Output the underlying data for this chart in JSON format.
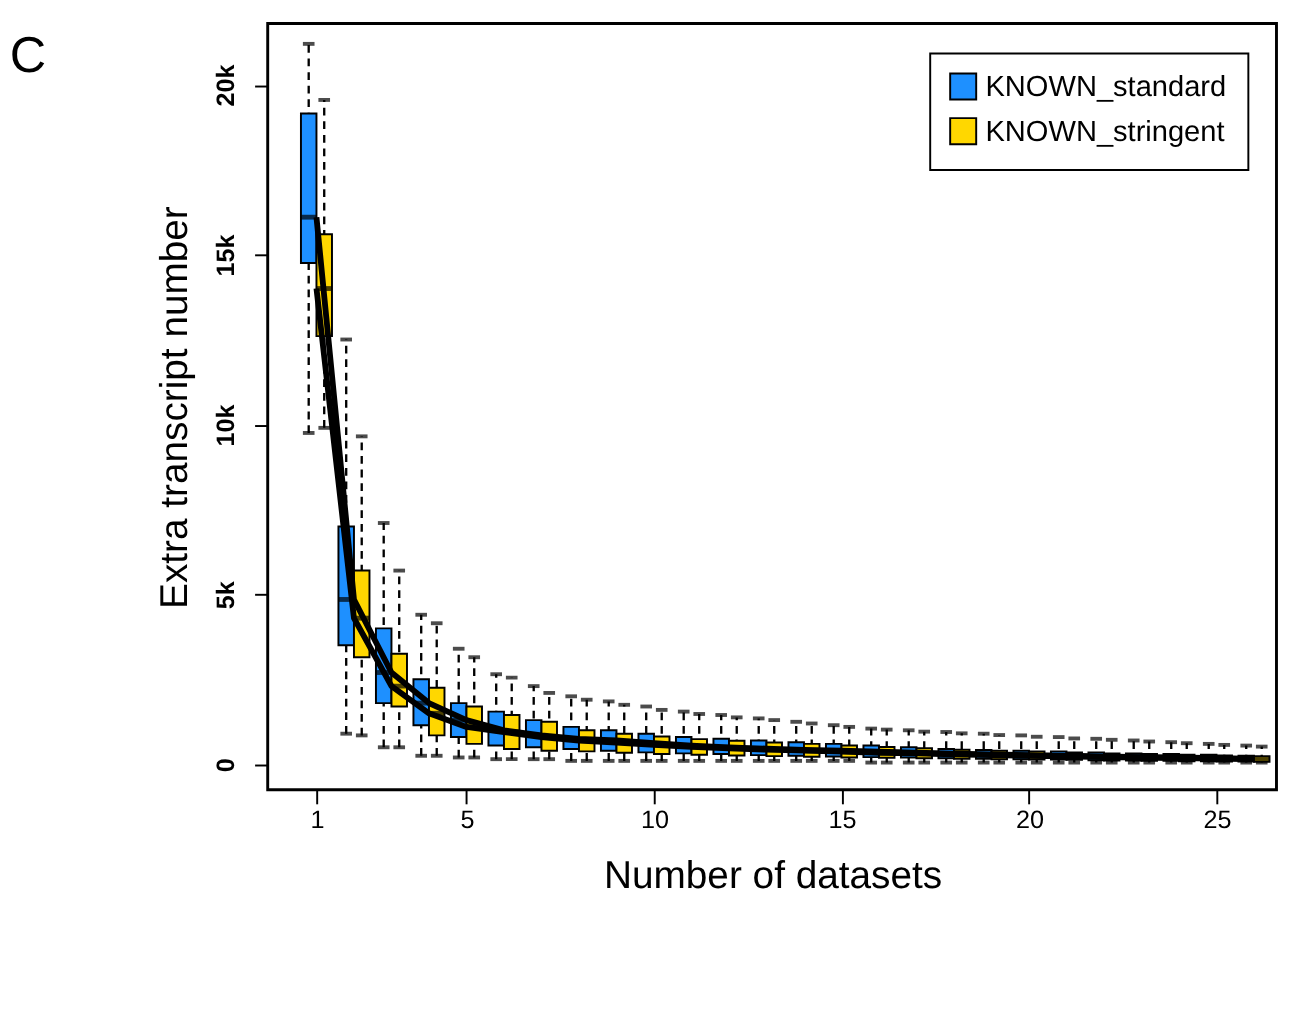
{
  "chart_data": {
    "type": "box",
    "title": "C",
    "xlabel": "Number of datasets",
    "ylabel": "Extra transcript number",
    "x": [
      1,
      2,
      3,
      4,
      5,
      6,
      7,
      8,
      9,
      10,
      11,
      12,
      13,
      14,
      15,
      16,
      17,
      18,
      19,
      20,
      21,
      22,
      23,
      24,
      25,
      26
    ],
    "xlim": [
      -0.3,
      26.6
    ],
    "xticks": [
      1,
      5,
      10,
      15,
      20,
      25
    ],
    "ylim": [
      -750,
      21800
    ],
    "yticks": [
      0,
      {
        "value": 5000,
        "label": "5k"
      },
      {
        "value": 10000,
        "label": "10k"
      },
      {
        "value": 15000,
        "label": "15k"
      },
      {
        "value": 20000,
        "label": "20k"
      }
    ],
    "legend": "top right",
    "grid": false,
    "series": [
      {
        "name": "KNOWN_standard",
        "color": "#1e90ff",
        "boxes": [
          {
            "low": 9750,
            "q1": 14750,
            "median": 16100,
            "q3": 19150,
            "high": 21200
          },
          {
            "low": 900,
            "q1": 3500,
            "median": 4850,
            "q3": 7000,
            "high": 12500
          },
          {
            "low": 500,
            "q1": 1800,
            "median": 2700,
            "q3": 4000,
            "high": 7100
          },
          {
            "low": 250,
            "q1": 1150,
            "median": 1800,
            "q3": 2500,
            "high": 4400
          },
          {
            "low": 200,
            "q1": 800,
            "median": 1300,
            "q3": 1800,
            "high": 3400
          },
          {
            "low": 150,
            "q1": 550,
            "median": 1000,
            "q3": 1550,
            "high": 2650
          },
          {
            "low": 150,
            "q1": 500,
            "median": 850,
            "q3": 1300,
            "high": 2300
          },
          {
            "low": 100,
            "q1": 450,
            "median": 750,
            "q3": 1100,
            "high": 2000
          },
          {
            "low": 100,
            "q1": 400,
            "median": 700,
            "q3": 1000,
            "high": 1850
          },
          {
            "low": 100,
            "q1": 350,
            "median": 620,
            "q3": 900,
            "high": 1700
          },
          {
            "low": 100,
            "q1": 320,
            "median": 550,
            "q3": 800,
            "high": 1550
          },
          {
            "low": 100,
            "q1": 300,
            "median": 500,
            "q3": 750,
            "high": 1450
          },
          {
            "low": 100,
            "q1": 270,
            "median": 460,
            "q3": 700,
            "high": 1350
          },
          {
            "low": 100,
            "q1": 250,
            "median": 420,
            "q3": 650,
            "high": 1250
          },
          {
            "low": 100,
            "q1": 230,
            "median": 400,
            "q3": 600,
            "high": 1150
          },
          {
            "low": 50,
            "q1": 210,
            "median": 370,
            "q3": 550,
            "high": 1050
          },
          {
            "low": 50,
            "q1": 200,
            "median": 340,
            "q3": 500,
            "high": 1000
          },
          {
            "low": 50,
            "q1": 180,
            "median": 310,
            "q3": 450,
            "high": 950
          },
          {
            "low": 50,
            "q1": 160,
            "median": 290,
            "q3": 420,
            "high": 900
          },
          {
            "low": 50,
            "q1": 150,
            "median": 270,
            "q3": 400,
            "high": 850
          },
          {
            "low": 50,
            "q1": 140,
            "median": 250,
            "q3": 380,
            "high": 800
          },
          {
            "low": 50,
            "q1": 120,
            "median": 230,
            "q3": 350,
            "high": 750
          },
          {
            "low": 50,
            "q1": 110,
            "median": 210,
            "q3": 320,
            "high": 700
          },
          {
            "low": 50,
            "q1": 100,
            "median": 200,
            "q3": 300,
            "high": 650
          },
          {
            "low": 50,
            "q1": 90,
            "median": 180,
            "q3": 280,
            "high": 600
          },
          {
            "low": 50,
            "q1": 80,
            "median": 160,
            "q3": 250,
            "high": 550
          }
        ]
      },
      {
        "name": "KNOWN_stringent",
        "color": "#ffd700",
        "boxes": [
          {
            "low": 9900,
            "q1": 12600,
            "median": 14000,
            "q3": 15600,
            "high": 19550
          },
          {
            "low": 850,
            "q1": 3150,
            "median": 4300,
            "q3": 5700,
            "high": 9650
          },
          {
            "low": 500,
            "q1": 1700,
            "median": 2300,
            "q3": 3250,
            "high": 5700
          },
          {
            "low": 250,
            "q1": 850,
            "median": 1500,
            "q3": 2250,
            "high": 4150
          },
          {
            "low": 200,
            "q1": 600,
            "median": 1100,
            "q3": 1700,
            "high": 3150
          },
          {
            "low": 150,
            "q1": 450,
            "median": 950,
            "q3": 1450,
            "high": 2550
          },
          {
            "low": 150,
            "q1": 400,
            "median": 800,
            "q3": 1250,
            "high": 2100
          },
          {
            "low": 100,
            "q1": 380,
            "median": 700,
            "q3": 1000,
            "high": 1900
          },
          {
            "low": 100,
            "q1": 340,
            "median": 640,
            "q3": 900,
            "high": 1750
          },
          {
            "low": 100,
            "q1": 300,
            "median": 570,
            "q3": 820,
            "high": 1600
          },
          {
            "low": 100,
            "q1": 280,
            "median": 510,
            "q3": 740,
            "high": 1480
          },
          {
            "low": 100,
            "q1": 260,
            "median": 470,
            "q3": 690,
            "high": 1380
          },
          {
            "low": 100,
            "q1": 240,
            "median": 430,
            "q3": 640,
            "high": 1300
          },
          {
            "low": 100,
            "q1": 220,
            "median": 400,
            "q3": 600,
            "high": 1200
          },
          {
            "low": 100,
            "q1": 200,
            "median": 370,
            "q3": 550,
            "high": 1100
          },
          {
            "low": 50,
            "q1": 190,
            "median": 340,
            "q3": 510,
            "high": 1020
          },
          {
            "low": 50,
            "q1": 180,
            "median": 320,
            "q3": 470,
            "high": 960
          },
          {
            "low": 50,
            "q1": 160,
            "median": 290,
            "q3": 430,
            "high": 910
          },
          {
            "low": 50,
            "q1": 150,
            "median": 270,
            "q3": 400,
            "high": 860
          },
          {
            "low": 50,
            "q1": 140,
            "median": 250,
            "q3": 380,
            "high": 810
          },
          {
            "low": 50,
            "q1": 130,
            "median": 230,
            "q3": 350,
            "high": 760
          },
          {
            "low": 50,
            "q1": 110,
            "median": 210,
            "q3": 320,
            "high": 720
          },
          {
            "low": 50,
            "q1": 100,
            "median": 200,
            "q3": 300,
            "high": 670
          },
          {
            "low": 50,
            "q1": 90,
            "median": 180,
            "q3": 280,
            "high": 620
          },
          {
            "low": 50,
            "q1": 80,
            "median": 170,
            "q3": 260,
            "high": 570
          },
          {
            "low": 50,
            "q1": 70,
            "median": 150,
            "q3": 240,
            "high": 520
          }
        ]
      },
      {
        "type": "line",
        "color": "#000000",
        "values": [
          16100,
          4850,
          2700,
          1800,
          1300,
          1000,
          850,
          750,
          700,
          620,
          550,
          500,
          460,
          420,
          400,
          370,
          340,
          310,
          290,
          270,
          250,
          230,
          210,
          200,
          180,
          160
        ]
      },
      {
        "type": "line",
        "color": "#000000",
        "values": [
          14000,
          4300,
          2300,
          1500,
          1100,
          950,
          800,
          700,
          640,
          570,
          510,
          470,
          430,
          400,
          370,
          340,
          320,
          290,
          270,
          250,
          230,
          210,
          200,
          180,
          170,
          150
        ]
      }
    ]
  }
}
